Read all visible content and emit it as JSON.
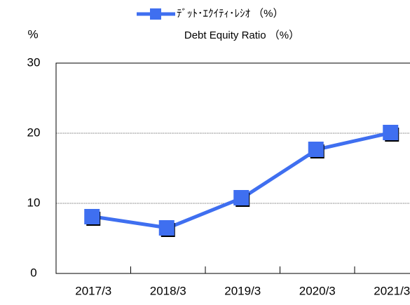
{
  "chart_data": {
    "type": "line",
    "subtitle": "Debt Equity Ratio （%）",
    "y_label": "%",
    "categories": [
      "2017/3",
      "2018/3",
      "2019/3",
      "2020/3",
      "2021/3"
    ],
    "series": [
      {
        "name": "ﾃﾞｯﾄ･ｴｸｲﾃｨ･ﾚｼｵ （%）",
        "color": "#3f6ff0",
        "values": [
          8.1,
          6.5,
          10.8,
          17.7,
          20.1
        ]
      }
    ],
    "ylim": [
      0,
      30
    ],
    "yticks": [
      0,
      10,
      20,
      30
    ],
    "grid": true,
    "legend": "top"
  }
}
